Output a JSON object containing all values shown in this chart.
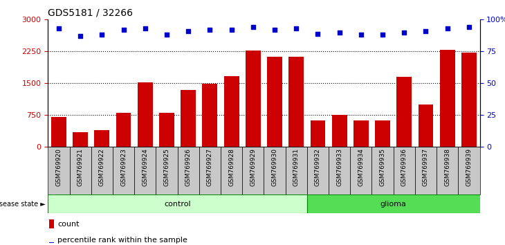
{
  "title": "GDS5181 / 32266",
  "samples": [
    "GSM769920",
    "GSM769921",
    "GSM769922",
    "GSM769923",
    "GSM769924",
    "GSM769925",
    "GSM769926",
    "GSM769927",
    "GSM769928",
    "GSM769929",
    "GSM769930",
    "GSM769931",
    "GSM769932",
    "GSM769933",
    "GSM769934",
    "GSM769935",
    "GSM769936",
    "GSM769937",
    "GSM769938",
    "GSM769939"
  ],
  "counts": [
    700,
    350,
    400,
    800,
    1520,
    800,
    1350,
    1490,
    1670,
    2270,
    2130,
    2130,
    620,
    760,
    620,
    620,
    1650,
    1000,
    2290,
    2230
  ],
  "percentiles": [
    93,
    87,
    88,
    92,
    93,
    88,
    91,
    92,
    92,
    94,
    92,
    93,
    89,
    90,
    88,
    88,
    90,
    91,
    93,
    94
  ],
  "n_control": 12,
  "ylim_left": [
    0,
    3000
  ],
  "ylim_right": [
    0,
    100
  ],
  "yticks_left": [
    0,
    750,
    1500,
    2250,
    3000
  ],
  "yticks_right": [
    0,
    25,
    50,
    75,
    100
  ],
  "bar_color": "#cc0000",
  "dot_color": "#0000cc",
  "control_color": "#ccffcc",
  "glioma_color": "#55dd55",
  "tick_bg_color": "#c8c8c8",
  "legend_count_label": "count",
  "legend_pct_label": "percentile rank within the sample"
}
